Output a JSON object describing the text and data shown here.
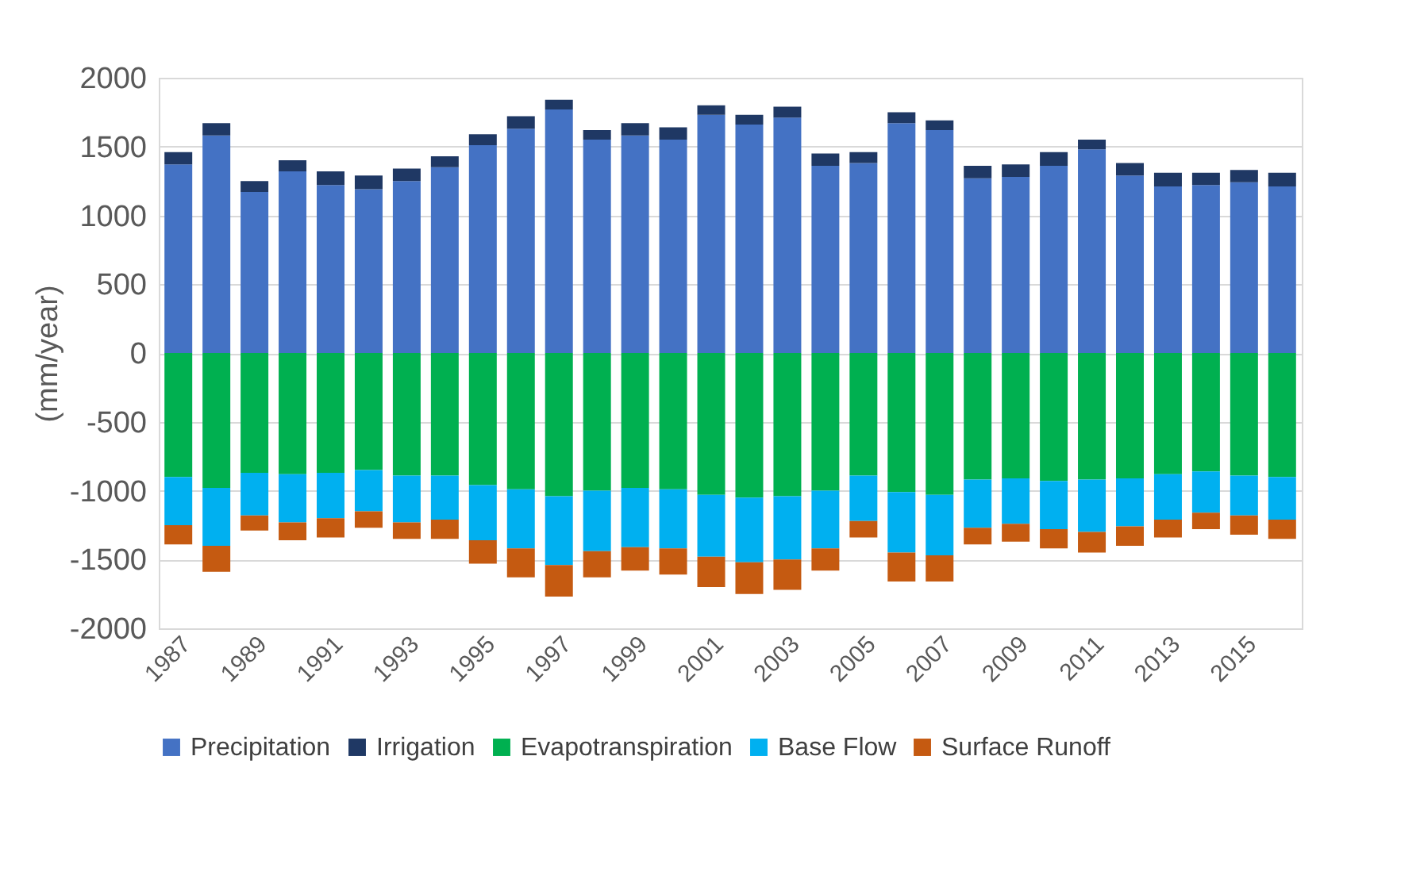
{
  "chart_data": {
    "type": "bar",
    "stacked": true,
    "ylabel": "(mm/year)",
    "categories": [
      "1987",
      null,
      "1989",
      null,
      "1991",
      null,
      "1993",
      null,
      "1995",
      null,
      "1997",
      null,
      "1999",
      null,
      "2001",
      null,
      "2003",
      null,
      "2005",
      null,
      "2007",
      null,
      "2009",
      null,
      "2011",
      null,
      "2013",
      null,
      "2015",
      null
    ],
    "series": [
      {
        "name": "Precipitation",
        "color": "#4472c4",
        "values": [
          1370,
          1580,
          1170,
          1320,
          1220,
          1190,
          1250,
          1350,
          1510,
          1630,
          1770,
          1550,
          1580,
          1550,
          1730,
          1660,
          1710,
          1360,
          1380,
          1670,
          1620,
          1270,
          1280,
          1360,
          1480,
          1290,
          1210,
          1220,
          1240,
          1210
        ]
      },
      {
        "name": "Irrigation",
        "color": "#1f3864",
        "values": [
          90,
          90,
          80,
          80,
          100,
          100,
          90,
          80,
          80,
          90,
          70,
          70,
          90,
          90,
          70,
          70,
          80,
          90,
          80,
          80,
          70,
          90,
          90,
          100,
          70,
          90,
          100,
          90,
          90,
          100
        ]
      },
      {
        "name": "Evapotranspiration",
        "color": "#00b050",
        "values": [
          -900,
          -980,
          -870,
          -880,
          -870,
          -850,
          -890,
          -890,
          -960,
          -990,
          -1040,
          -1000,
          -980,
          -990,
          -1030,
          -1050,
          -1040,
          -1000,
          -890,
          -1010,
          -1030,
          -920,
          -910,
          -930,
          -920,
          -910,
          -880,
          -860,
          -890,
          -900
        ]
      },
      {
        "name": "Base Flow",
        "color": "#00b0f0",
        "values": [
          -350,
          -420,
          -310,
          -350,
          -330,
          -300,
          -340,
          -320,
          -400,
          -430,
          -500,
          -440,
          -430,
          -430,
          -450,
          -470,
          -460,
          -420,
          -330,
          -440,
          -440,
          -350,
          -330,
          -350,
          -380,
          -350,
          -330,
          -300,
          -290,
          -310
        ]
      },
      {
        "name": "Surface Runoff",
        "color": "#c55a11",
        "values": [
          -140,
          -190,
          -110,
          -130,
          -140,
          -120,
          -120,
          -140,
          -170,
          -210,
          -230,
          -190,
          -170,
          -190,
          -220,
          -230,
          -220,
          -160,
          -120,
          -210,
          -190,
          -120,
          -130,
          -140,
          -150,
          -140,
          -130,
          -120,
          -140,
          -140
        ]
      }
    ],
    "ylim": [
      -2000,
      2000
    ],
    "yticks": [
      -2000,
      -1500,
      -1000,
      -500,
      0,
      500,
      1000,
      1500,
      2000
    ],
    "grid": "y",
    "legend": "bottom"
  }
}
